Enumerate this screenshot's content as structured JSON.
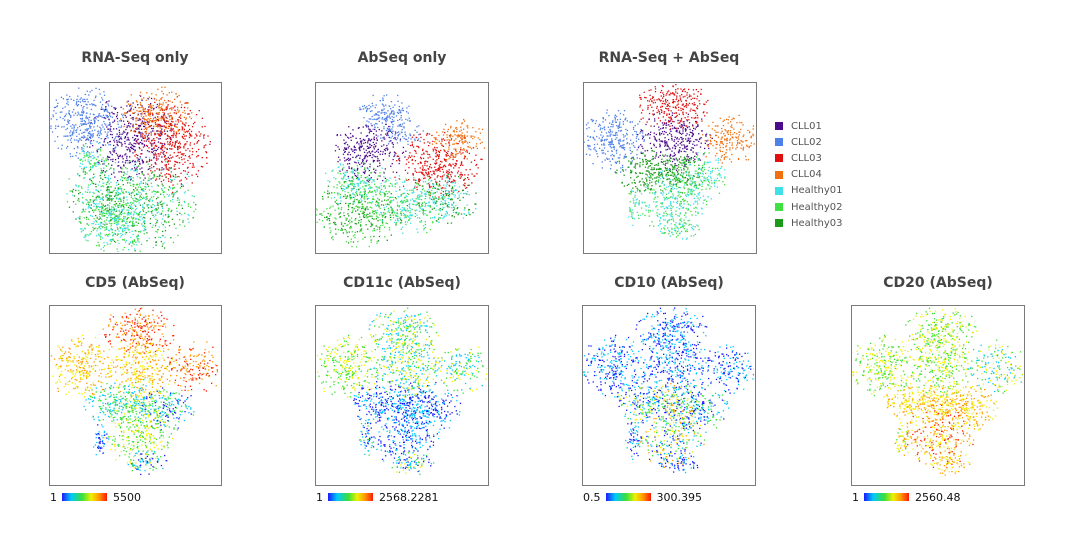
{
  "chart_data": [
    {
      "type": "scatter",
      "title": "RNA-Seq only",
      "coloring": "sample",
      "xlabel": "",
      "ylabel": ""
    },
    {
      "type": "scatter",
      "title": "AbSeq only",
      "coloring": "sample",
      "xlabel": "",
      "ylabel": ""
    },
    {
      "type": "scatter",
      "title": "RNA-Seq + AbSeq",
      "coloring": "sample",
      "xlabel": "",
      "ylabel": "",
      "legend": {
        "placement": "right",
        "entries": [
          {
            "name": "CLL01",
            "color": "#4b0c8c"
          },
          {
            "name": "CLL02",
            "color": "#4f81e8"
          },
          {
            "name": "CLL03",
            "color": "#e01010"
          },
          {
            "name": "CLL04",
            "color": "#f07010"
          },
          {
            "name": "Healthy01",
            "color": "#40e0e8"
          },
          {
            "name": "Healthy02",
            "color": "#40e040"
          },
          {
            "name": "Healthy03",
            "color": "#1a9a1a"
          }
        ]
      }
    },
    {
      "type": "scatter",
      "title": "CD5 (AbSeq)",
      "coloring": "expression",
      "colorbar": {
        "min": "1",
        "max": "5500"
      }
    },
    {
      "type": "scatter",
      "title": "CD11c (AbSeq)",
      "coloring": "expression",
      "colorbar": {
        "min": "1",
        "max": "2568.2281"
      }
    },
    {
      "type": "scatter",
      "title": "CD10 (AbSeq)",
      "coloring": "expression",
      "colorbar": {
        "min": "0.5",
        "max": "300.395"
      }
    },
    {
      "type": "scatter",
      "title": "CD20 (AbSeq)",
      "coloring": "expression",
      "colorbar": {
        "min": "1",
        "max": "2560.48"
      }
    }
  ],
  "sample_colors": {
    "CLL01": "#4b0c8c",
    "CLL02": "#4f81e8",
    "CLL03": "#e01010",
    "CLL04": "#f07010",
    "Healthy01": "#40e0e8",
    "Healthy02": "#40e040",
    "Healthy03": "#1a9a1a"
  },
  "expression_palette": [
    "#1a1aff",
    "#00c8ff",
    "#3ae03a",
    "#f0f000",
    "#ff9900",
    "#ff1a00"
  ]
}
